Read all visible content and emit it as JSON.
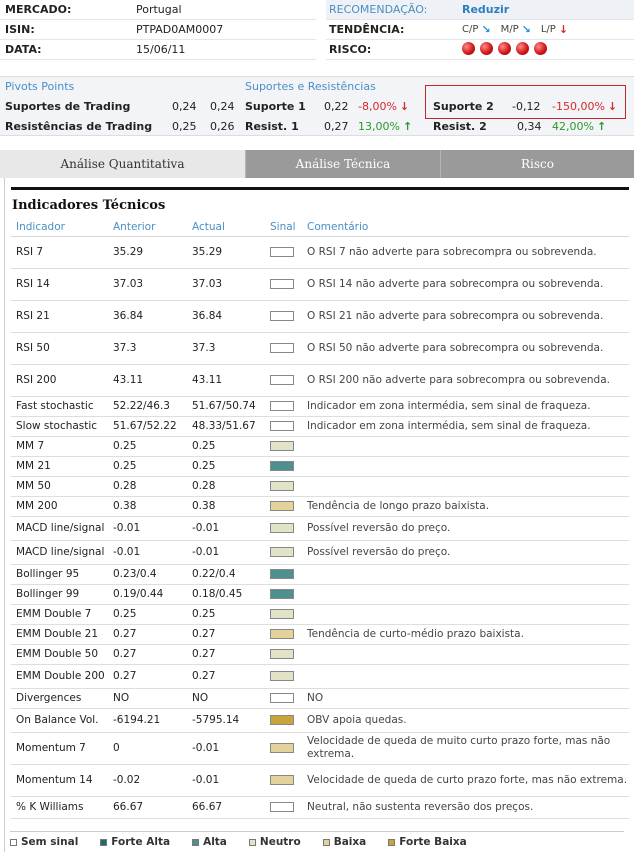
{
  "info": {
    "mercado": {
      "label": "MERCADO:",
      "value": "Portugal"
    },
    "isin": {
      "label": "ISIN:",
      "value": "PTPAD0AM0007"
    },
    "data": {
      "label": "DATA:",
      "value": "15/06/11"
    }
  },
  "recomendacao": {
    "label": "RECOMENDAÇÃO:",
    "value": "Reduzir"
  },
  "tendencia": {
    "label": "TENDÊNCIA:",
    "items": [
      {
        "label": "C/P",
        "arrow": "↘"
      },
      {
        "label": "M/P",
        "arrow": "↘"
      },
      {
        "label": "L/P",
        "arrow": "↓"
      }
    ]
  },
  "risco": {
    "label": "RISCO:",
    "level": 5
  },
  "pivots": {
    "title": "Pivots Points",
    "sr_title": "Suportes e Resistências",
    "suportes_trading": {
      "label": "Suportes de Trading",
      "v1": "0,24",
      "v2": "0,24"
    },
    "resistencias_trading": {
      "label": "Resistências de Trading",
      "v1": "0,25",
      "v2": "0,26"
    },
    "suporte1": {
      "label": "Suporte 1",
      "value": "0,22",
      "pct": "-8,00%",
      "arrow": "↓"
    },
    "suporte2": {
      "label": "Suporte 2",
      "value": "-0,12",
      "pct": "-150,00%",
      "arrow": "↓"
    },
    "resist1": {
      "label": "Resist. 1",
      "value": "0,27",
      "pct": "13,00%",
      "arrow": "↑"
    },
    "resist2": {
      "label": "Resist. 2",
      "value": "0,34",
      "pct": "42,00%",
      "arrow": "↑"
    }
  },
  "tabs": [
    "Análise Quantitativa",
    "Análise Técnica",
    "Risco"
  ],
  "panel_title": "Indicadores Técnicos",
  "table": {
    "headers": [
      "Indicador",
      "Anterior",
      "Actual",
      "Sinal",
      "Comentário"
    ],
    "rows": [
      {
        "ind": "RSI 7",
        "ant": "35.29",
        "act": "35.29",
        "sig": "sem",
        "cmt": "O RSI 7 não adverte para sobrecompra ou sobrevenda.",
        "h": 32
      },
      {
        "ind": "RSI 14",
        "ant": "37.03",
        "act": "37.03",
        "sig": "sem",
        "cmt": "O RSI 14 não adverte para sobrecompra ou sobrevenda.",
        "h": 32
      },
      {
        "ind": "RSI 21",
        "ant": "36.84",
        "act": "36.84",
        "sig": "sem",
        "cmt": "O RSI 21 não adverte para sobrecompra ou sobrevenda.",
        "h": 32
      },
      {
        "ind": "RSI 50",
        "ant": "37.3",
        "act": "37.3",
        "sig": "sem",
        "cmt": "O RSI 50 não adverte para sobrecompra ou sobrevenda.",
        "h": 32
      },
      {
        "ind": "RSI 200",
        "ant": "43.11",
        "act": "43.11",
        "sig": "sem",
        "cmt": "O RSI 200 não adverte para sobrecompra ou sobrevenda.",
        "h": 32
      },
      {
        "ind": "Fast stochastic",
        "ant": "52.22/46.3",
        "act": "51.67/50.74",
        "sig": "sem",
        "cmt": "Indicador em zona intermédia, sem sinal de fraqueza.",
        "h": 20
      },
      {
        "ind": "Slow stochastic",
        "ant": "51.67/52.22",
        "act": "48.33/51.67",
        "sig": "sem",
        "cmt": "Indicador em zona intermédia, sem sinal de fraqueza.",
        "h": 20
      },
      {
        "ind": "MM 7",
        "ant": "0.25",
        "act": "0.25",
        "sig": "neutro",
        "cmt": "",
        "h": 20
      },
      {
        "ind": "MM 21",
        "ant": "0.25",
        "act": "0.25",
        "sig": "alta",
        "cmt": "",
        "h": 20
      },
      {
        "ind": "MM 50",
        "ant": "0.28",
        "act": "0.28",
        "sig": "neutro",
        "cmt": "",
        "h": 20
      },
      {
        "ind": "MM 200",
        "ant": "0.38",
        "act": "0.38",
        "sig": "baixa",
        "cmt": "Tendência de longo prazo baixista.",
        "h": 20
      },
      {
        "ind": "MACD line/signal",
        "ant": "-0.01",
        "act": "-0.01",
        "sig": "neutro",
        "cmt": "Possível reversão do preço.",
        "h": 24
      },
      {
        "ind": "MACD line/signal",
        "ant": "-0.01",
        "act": "-0.01",
        "sig": "neutro",
        "cmt": "Possível reversão do preço.",
        "h": 24
      },
      {
        "ind": "Bollinger 95",
        "ant": "0.23/0.4",
        "act": "0.22/0.4",
        "sig": "alta",
        "cmt": "",
        "h": 20
      },
      {
        "ind": "Bollinger 99",
        "ant": "0.19/0.44",
        "act": "0.18/0.45",
        "sig": "alta",
        "cmt": "",
        "h": 20
      },
      {
        "ind": "EMM Double 7",
        "ant": "0.25",
        "act": "0.25",
        "sig": "neutro",
        "cmt": "",
        "h": 20
      },
      {
        "ind": "EMM Double 21",
        "ant": "0.27",
        "act": "0.27",
        "sig": "baixa",
        "cmt": "Tendência de curto-médio prazo baixista.",
        "h": 20
      },
      {
        "ind": "EMM Double 50",
        "ant": "0.27",
        "act": "0.27",
        "sig": "neutro",
        "cmt": "",
        "h": 20
      },
      {
        "ind": "EMM Double 200",
        "ant": "0.27",
        "act": "0.27",
        "sig": "neutro",
        "cmt": "",
        "h": 24
      },
      {
        "ind": "Divergences",
        "ant": "NO",
        "act": "NO",
        "sig": "sem",
        "cmt": "NO",
        "h": 20
      },
      {
        "ind": "On Balance Vol.",
        "ant": "-6194.21",
        "act": "-5795.14",
        "sig": "forte-baixa",
        "cmt": "OBV apoia quedas.",
        "h": 24
      },
      {
        "ind": "Momentum 7",
        "ant": "0",
        "act": "-0.01",
        "sig": "baixa",
        "cmt": "Velocidade de queda de muito curto prazo forte, mas não extrema.",
        "h": 32
      },
      {
        "ind": "Momentum 14",
        "ant": "-0.02",
        "act": "-0.01",
        "sig": "baixa",
        "cmt": "Velocidade de queda de curto prazo forte, mas não extrema.",
        "h": 32
      },
      {
        "ind": "% K Williams",
        "ant": "66.67",
        "act": "66.67",
        "sig": "sem",
        "cmt": "Neutral, não sustenta reversão dos preços.",
        "h": 22
      }
    ]
  },
  "signal_colors": {
    "sem": "#ffffff",
    "forte-alta": "#1f6b6b",
    "alta": "#4f8f8f",
    "neutro": "#e2e2c6",
    "baixa": "#e3d29a",
    "forte-baixa": "#c9a43a"
  },
  "legend": [
    {
      "key": "sem",
      "label": "Sem sinal"
    },
    {
      "key": "forte-alta",
      "label": "Forte Alta"
    },
    {
      "key": "alta",
      "label": "Alta"
    },
    {
      "key": "neutro",
      "label": "Neutro"
    },
    {
      "key": "baixa",
      "label": "Baixa"
    },
    {
      "key": "forte-baixa",
      "label": "Forte Baixa"
    }
  ]
}
